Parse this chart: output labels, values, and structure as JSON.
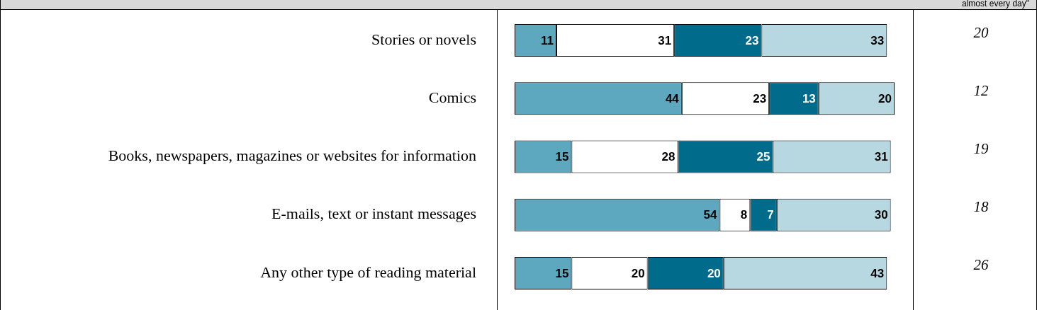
{
  "chart_data": {
    "type": "bar",
    "orientation": "horizontal",
    "stacked": true,
    "data_labels": true,
    "legend": false,
    "categories": [
      "Stories or novels",
      "Comics",
      "Books, newspapers, magazines or websites for information",
      "E-mails, text or instant messages",
      "Any other type of reading material"
    ],
    "series": [
      {
        "color": "#5ea8bf",
        "values": [
          11,
          44,
          15,
          54,
          15
        ]
      },
      {
        "color": "#ffffff",
        "values": [
          31,
          23,
          28,
          8,
          20
        ]
      },
      {
        "color": "#006b8a",
        "values": [
          23,
          13,
          25,
          7,
          20
        ]
      },
      {
        "color": "#b7d7e1",
        "values": [
          33,
          20,
          31,
          30,
          43
        ]
      }
    ],
    "annotations": [
      "almost every day\"",
      "20",
      "12",
      "19",
      "18",
      "26"
    ]
  }
}
